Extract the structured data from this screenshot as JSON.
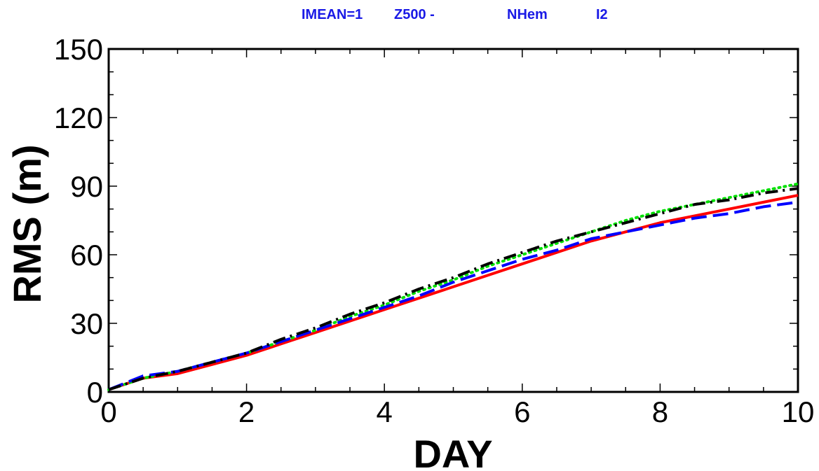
{
  "chart_data": {
    "type": "line",
    "title_parts": [
      "IMEAN=1",
      "Z500 -",
      "NHem",
      "I2"
    ],
    "title_color": "#1a1ae6",
    "xlabel": "DAY",
    "ylabel": "RMS (m)",
    "xlim": [
      0,
      10
    ],
    "ylim": [
      0,
      150
    ],
    "x_ticks": [
      0,
      2,
      4,
      6,
      8,
      10
    ],
    "y_ticks": [
      0,
      30,
      60,
      90,
      120,
      150
    ],
    "x_tick_labels": [
      "0",
      "2",
      "4",
      "6",
      "8",
      "10"
    ],
    "y_tick_labels": [
      "0",
      "30",
      "60",
      "90",
      "120",
      "150"
    ],
    "grid": false,
    "x": [
      0,
      0.5,
      1,
      1.5,
      2,
      2.5,
      3,
      3.5,
      4,
      4.5,
      5,
      5.5,
      6,
      6.5,
      7,
      7.5,
      8,
      8.5,
      9,
      9.5,
      10
    ],
    "series": [
      {
        "color": "#ff0000",
        "dash": "solid",
        "values": [
          1,
          6,
          8,
          12,
          16,
          21,
          26,
          31,
          36,
          41,
          46,
          51,
          56,
          61,
          66,
          70,
          74,
          77,
          80,
          83,
          86
        ]
      },
      {
        "color": "#00e000",
        "dash": "dotted",
        "values": [
          1,
          6,
          9,
          13,
          17,
          22,
          27,
          33,
          38,
          44,
          49,
          55,
          60,
          65,
          70,
          75,
          79,
          82,
          85,
          88,
          91
        ]
      },
      {
        "color": "#0000ff",
        "dash": "dashed",
        "values": [
          1,
          7,
          9,
          13,
          17,
          22,
          27,
          32,
          37,
          42,
          48,
          53,
          58,
          62,
          67,
          70,
          73,
          76,
          78,
          81,
          83
        ]
      },
      {
        "color": "#000000",
        "dash": "dashdot",
        "values": [
          1,
          6,
          9,
          13,
          17,
          23,
          28,
          34,
          39,
          45,
          50,
          56,
          61,
          66,
          70,
          74,
          78,
          82,
          84,
          87,
          89
        ]
      }
    ]
  }
}
